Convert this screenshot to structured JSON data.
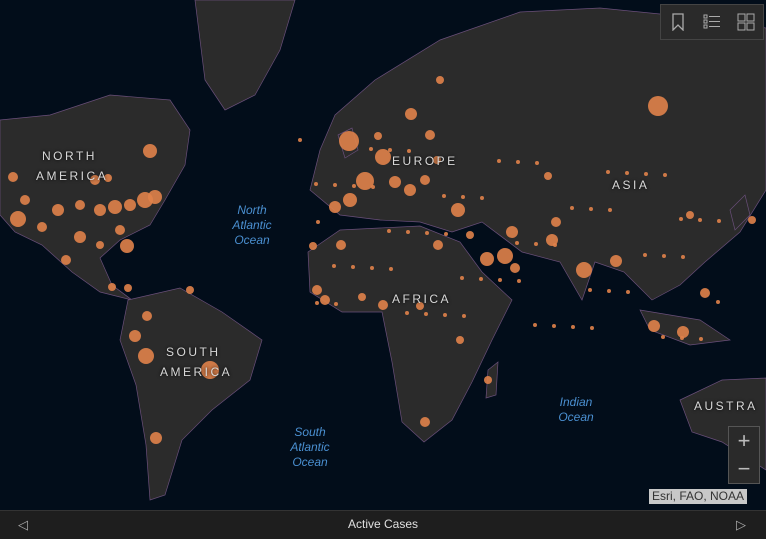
{
  "map": {
    "continent_labels": [
      "NORTH",
      "AMERICA",
      "EUROPE",
      "ASIA",
      "AFRICA",
      "SOUTH",
      "AMERICA",
      "AUSTRA"
    ],
    "ocean_labels": {
      "north_atlantic": [
        "North",
        "Atlantic",
        "Ocean"
      ],
      "south_atlantic": [
        "South",
        "Atlantic",
        "Ocean"
      ],
      "indian": [
        "Indian",
        "Ocean"
      ]
    },
    "attribution": "Esri, FAO, NOAA",
    "colors": {
      "land": "#2b2b2b",
      "water": "#020d1a",
      "borders": "#7a5a8a",
      "markers": "#e0824a"
    }
  },
  "toolbar": {
    "icons": [
      "bookmark-icon",
      "legend-list-icon",
      "basemap-gallery-icon"
    ]
  },
  "zoom": {
    "in": "+",
    "out": "−"
  },
  "bottom_bar": {
    "title": "Active Cases",
    "prev": "◁",
    "next": "▷"
  }
}
